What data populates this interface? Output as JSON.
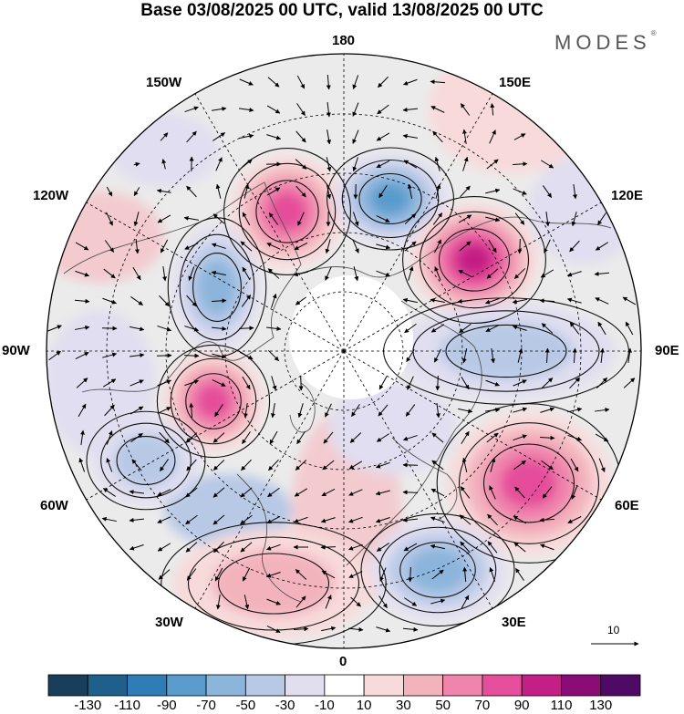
{
  "title": "Base 03/08/2025 00 UTC, valid 13/08/2025 00 UTC",
  "brand": "MODES",
  "brand_mark": "®",
  "longitude_labels": {
    "l180": "180",
    "l150w": "150W",
    "l150e": "150E",
    "l120w": "120W",
    "l120e": "120E",
    "l90w": "90W",
    "l90e": "90E",
    "l60w": "60W",
    "l60e": "60E",
    "l30w": "30W",
    "l30e": "30E",
    "l0": "0"
  },
  "vector_scale": "10",
  "colorbar": {
    "labels": [
      "-130",
      "-110",
      "-90",
      "-70",
      "-50",
      "-30",
      "-10",
      "10",
      "30",
      "50",
      "70",
      "90",
      "110",
      "130"
    ],
    "colors": [
      "#193d5a",
      "#1f5f8c",
      "#2f7db6",
      "#5a9bcd",
      "#8cb5dc",
      "#b8c9e6",
      "#e0def0",
      "#ffffff",
      "#f8dada",
      "#f3b3bd",
      "#ef85ad",
      "#e54e9b",
      "#c41f85",
      "#8c0c77",
      "#4f0a66"
    ]
  },
  "anomaly_centers": [
    {
      "name": "pacific-high",
      "lon_label": "150W-180",
      "sign": "positive",
      "peak_class": "90"
    },
    {
      "name": "siberia-low",
      "lon_label": "150E-180",
      "sign": "negative",
      "peak_class": "-90"
    },
    {
      "name": "east-asia-high",
      "lon_label": "120E-150E",
      "sign": "positive",
      "peak_class": "110"
    },
    {
      "name": "canada-low",
      "lon_label": "120W-150W",
      "sign": "negative",
      "peak_class": "-70"
    },
    {
      "name": "hudson-high",
      "lon_label": "90W",
      "sign": "positive",
      "peak_class": "90"
    },
    {
      "name": "central-asia-low",
      "lon_label": "90E",
      "sign": "negative",
      "peak_class": "-50"
    },
    {
      "name": "urals-high",
      "lon_label": "60E",
      "sign": "positive",
      "peak_class": "90"
    },
    {
      "name": "europe-low",
      "lon_label": "30E",
      "sign": "negative",
      "peak_class": "-70"
    },
    {
      "name": "atlantic-low",
      "lon_label": "60W",
      "sign": "negative",
      "peak_class": "-50"
    },
    {
      "name": "north-atlantic-high",
      "lon_label": "30W",
      "sign": "positive",
      "peak_class": "50"
    }
  ]
}
